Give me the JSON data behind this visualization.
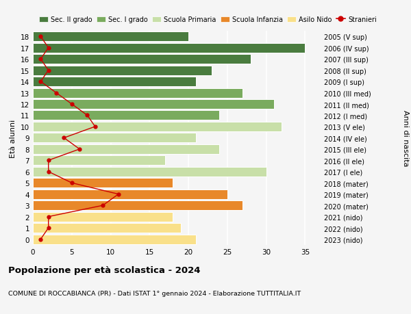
{
  "ages": [
    0,
    1,
    2,
    3,
    4,
    5,
    6,
    7,
    8,
    9,
    10,
    11,
    12,
    13,
    14,
    15,
    16,
    17,
    18
  ],
  "bar_values": [
    21,
    19,
    18,
    27,
    25,
    18,
    30,
    17,
    24,
    21,
    32,
    24,
    31,
    27,
    21,
    23,
    28,
    35,
    20
  ],
  "bar_colors": [
    "#f9e08a",
    "#f9e08a",
    "#f9e08a",
    "#e8882a",
    "#e8882a",
    "#e8882a",
    "#c8dfa8",
    "#c8dfa8",
    "#c8dfa8",
    "#c8dfa8",
    "#c8dfa8",
    "#7aab5e",
    "#7aab5e",
    "#7aab5e",
    "#4a7c3f",
    "#4a7c3f",
    "#4a7c3f",
    "#4a7c3f",
    "#4a7c3f"
  ],
  "stranieri_values": [
    1,
    2,
    2,
    9,
    11,
    5,
    2,
    2,
    6,
    4,
    8,
    7,
    5,
    3,
    1,
    2,
    1,
    2,
    1
  ],
  "right_labels": [
    "2023 (nido)",
    "2022 (nido)",
    "2021 (nido)",
    "2020 (mater)",
    "2019 (mater)",
    "2018 (mater)",
    "2017 (I ele)",
    "2016 (II ele)",
    "2015 (III ele)",
    "2014 (IV ele)",
    "2013 (V ele)",
    "2012 (I med)",
    "2011 (II med)",
    "2010 (III med)",
    "2009 (I sup)",
    "2008 (II sup)",
    "2007 (III sup)",
    "2006 (IV sup)",
    "2005 (V sup)"
  ],
  "ylabel_left": "Età alunni",
  "ylabel_right": "Anni di nascita",
  "title": "Popolazione per età scolastica - 2024",
  "subtitle": "COMUNE DI ROCCABIANCA (PR) - Dati ISTAT 1° gennaio 2024 - Elaborazione TUTTITALIA.IT",
  "legend_labels": [
    "Sec. II grado",
    "Sec. I grado",
    "Scuola Primaria",
    "Scuola Infanzia",
    "Asilo Nido",
    "Stranieri"
  ],
  "legend_colors": [
    "#4a7c3f",
    "#7aab5e",
    "#c8dfa8",
    "#e8882a",
    "#f9e08a",
    "#cc0000"
  ],
  "stranieri_color": "#cc0000",
  "xlim": [
    0,
    37
  ],
  "background_color": "#f5f5f5",
  "grid_color": "#ffffff",
  "xticks": [
    0,
    5,
    10,
    15,
    20,
    25,
    30,
    35
  ]
}
